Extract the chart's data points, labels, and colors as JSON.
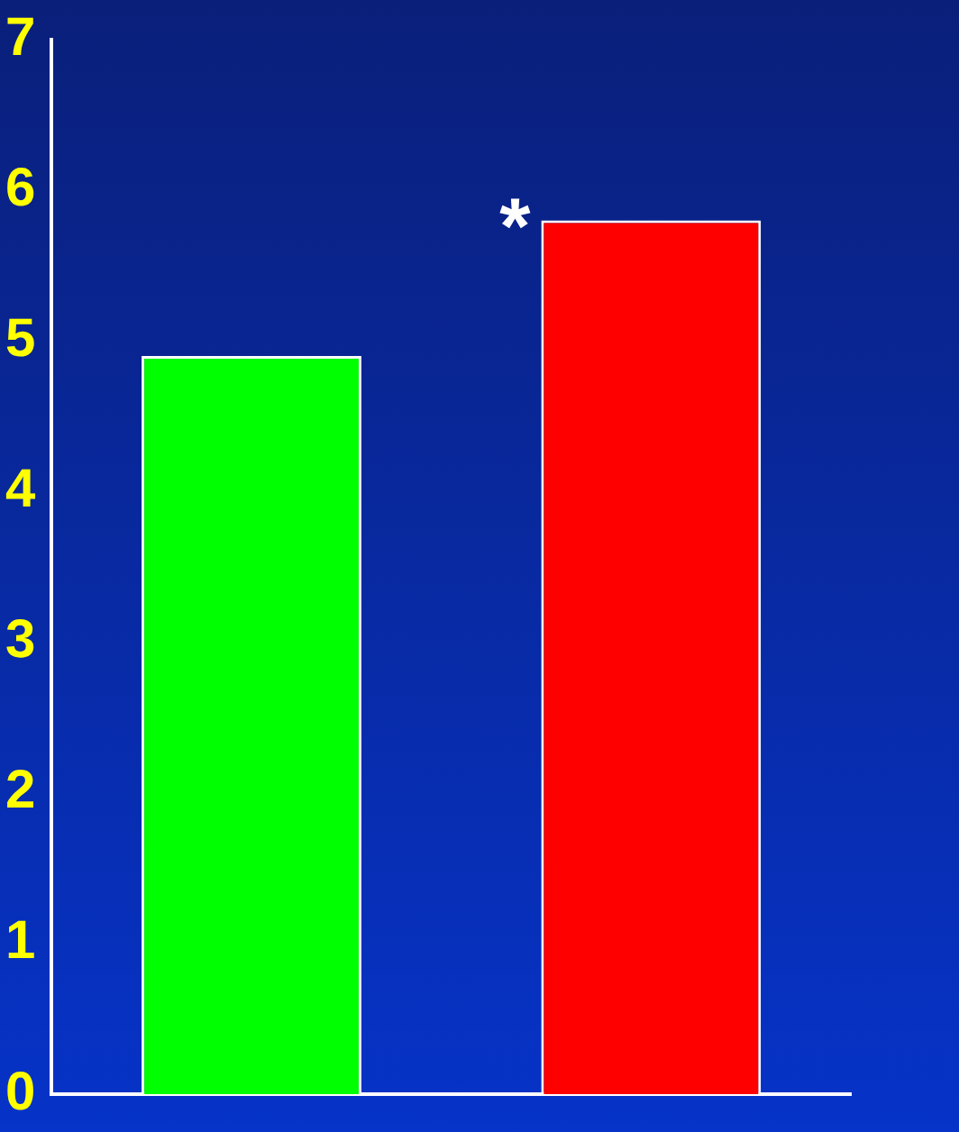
{
  "chart_data": {
    "type": "bar",
    "categories": [
      null,
      null
    ],
    "values": [
      4.9,
      5.8
    ],
    "colors": [
      "#00ff00",
      "#ff0000"
    ],
    "ylim": [
      0,
      7
    ],
    "yticks": [
      0,
      1,
      2,
      3,
      4,
      5,
      6,
      7
    ],
    "grid": false,
    "legend": false,
    "annotations": [
      "*"
    ]
  }
}
